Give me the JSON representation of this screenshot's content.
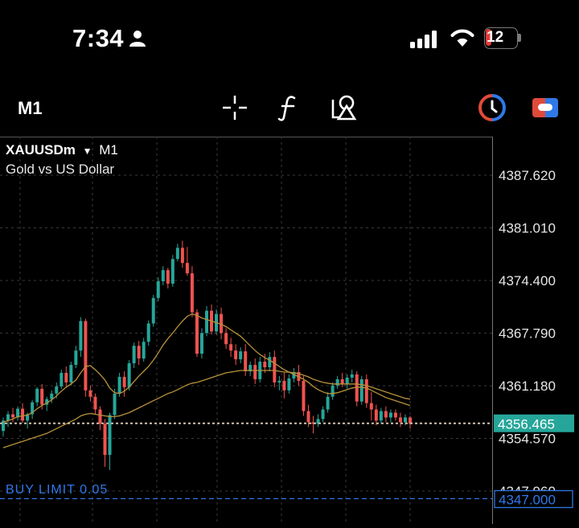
{
  "status": {
    "time": "7:34",
    "battery": "12",
    "battery_level": 0.12
  },
  "toolbar": {
    "timeframe": "M1",
    "icons": [
      "crosshair-icon",
      "function-icon",
      "objects-icon",
      "one-click-trading-icon",
      "trade-toggle-icon"
    ]
  },
  "chart": {
    "symbol": "XAUUSDm",
    "timeframe": "M1",
    "description": "Gold vs US Dollar",
    "current_price": "4356.465",
    "order_label": "BUY LIMIT 0.05",
    "order_price": "4347.000",
    "price_labels": [
      "4387.620",
      "4381.010",
      "4374.400",
      "4367.790",
      "4361.180",
      "4354.570",
      "4347.960"
    ],
    "colors": {
      "bull": "#26a69a",
      "bear": "#ef5350",
      "ma": "#b8923a",
      "current": "#26a69a",
      "order": "#2f78e8",
      "grid": "#3a3a3a"
    }
  },
  "chart_data": {
    "type": "candlestick",
    "ylim": [
      4344,
      4392
    ],
    "ticks": [
      4387.62,
      4381.01,
      4374.4,
      4367.79,
      4361.18,
      4354.57,
      4347.96
    ],
    "current_price": 4356.465,
    "order_price": 4347.0,
    "candles": [
      [
        4355.5,
        4357.2,
        4354.8,
        4356.8
      ],
      [
        4356.8,
        4358.0,
        4356.0,
        4357.6
      ],
      [
        4357.6,
        4358.4,
        4356.6,
        4357.2
      ],
      [
        4357.2,
        4358.6,
        4356.8,
        4358.3
      ],
      [
        4358.3,
        4359.0,
        4356.5,
        4356.8
      ],
      [
        4356.8,
        4357.8,
        4355.8,
        4357.6
      ],
      [
        4357.6,
        4359.4,
        4357.0,
        4359.1
      ],
      [
        4359.1,
        4361.0,
        4358.6,
        4360.8
      ],
      [
        4360.8,
        4361.4,
        4358.2,
        4358.8
      ],
      [
        4358.8,
        4359.8,
        4358.0,
        4359.5
      ],
      [
        4359.5,
        4360.6,
        4359.0,
        4360.2
      ],
      [
        4360.2,
        4361.6,
        4359.6,
        4361.1
      ],
      [
        4361.1,
        4363.2,
        4360.8,
        4362.8
      ],
      [
        4362.8,
        4363.6,
        4361.0,
        4361.6
      ],
      [
        4361.6,
        4364.2,
        4361.2,
        4363.8
      ],
      [
        4363.8,
        4366.2,
        4363.4,
        4365.6
      ],
      [
        4365.6,
        4369.8,
        4364.8,
        4369.3
      ],
      [
        4369.3,
        4369.6,
        4359.8,
        4360.6
      ],
      [
        4360.6,
        4361.2,
        4359.2,
        4359.8
      ],
      [
        4359.8,
        4360.2,
        4357.6,
        4358.2
      ],
      [
        4358.2,
        4358.6,
        4355.6,
        4356.4
      ],
      [
        4356.4,
        4357.0,
        4351.0,
        4352.5
      ],
      [
        4352.5,
        4357.8,
        4350.6,
        4357.5
      ],
      [
        4357.5,
        4360.8,
        4357.0,
        4360.2
      ],
      [
        4360.2,
        4362.8,
        4359.8,
        4362.3
      ],
      [
        4362.3,
        4363.0,
        4359.8,
        4361.0
      ],
      [
        4361.0,
        4364.4,
        4360.6,
        4364.0
      ],
      [
        4364.0,
        4366.6,
        4363.4,
        4366.2
      ],
      [
        4366.2,
        4366.8,
        4363.8,
        4364.6
      ],
      [
        4364.6,
        4367.2,
        4364.2,
        4366.7
      ],
      [
        4366.7,
        4369.4,
        4366.2,
        4369.0
      ],
      [
        4369.0,
        4372.6,
        4368.6,
        4372.2
      ],
      [
        4372.2,
        4374.8,
        4371.8,
        4374.3
      ],
      [
        4374.3,
        4376.2,
        4373.8,
        4375.7
      ],
      [
        4375.7,
        4376.0,
        4373.4,
        4374.0
      ],
      [
        4374.0,
        4377.6,
        4373.6,
        4377.1
      ],
      [
        4377.1,
        4379.0,
        4376.8,
        4378.5
      ],
      [
        4378.5,
        4379.4,
        4376.0,
        4376.6
      ],
      [
        4376.6,
        4378.6,
        4375.0,
        4375.3
      ],
      [
        4375.3,
        4376.2,
        4369.8,
        4370.4
      ],
      [
        4370.4,
        4370.8,
        4364.8,
        4365.2
      ],
      [
        4365.2,
        4368.4,
        4364.6,
        4367.8
      ],
      [
        4367.8,
        4371.2,
        4367.4,
        4370.6
      ],
      [
        4370.6,
        4371.4,
        4367.6,
        4368.0
      ],
      [
        4368.0,
        4370.8,
        4367.6,
        4370.2
      ],
      [
        4370.2,
        4371.0,
        4367.0,
        4367.8
      ],
      [
        4367.8,
        4368.4,
        4365.8,
        4366.4
      ],
      [
        4366.4,
        4367.2,
        4364.8,
        4365.6
      ],
      [
        4365.6,
        4366.4,
        4363.8,
        4364.5
      ],
      [
        4364.5,
        4366.0,
        4364.0,
        4365.5
      ],
      [
        4365.5,
        4366.4,
        4362.4,
        4363.0
      ],
      [
        4363.0,
        4364.2,
        4362.4,
        4363.8
      ],
      [
        4363.8,
        4364.6,
        4361.4,
        4362.0
      ],
      [
        4362.0,
        4364.8,
        4361.6,
        4364.2
      ],
      [
        4364.2,
        4365.2,
        4362.8,
        4363.5
      ],
      [
        4363.5,
        4365.4,
        4363.0,
        4364.8
      ],
      [
        4364.8,
        4365.6,
        4361.0,
        4361.6
      ],
      [
        4361.6,
        4362.4,
        4360.6,
        4361.8
      ],
      [
        4361.8,
        4362.8,
        4359.6,
        4360.6
      ],
      [
        4360.6,
        4362.6,
        4360.2,
        4362.1
      ],
      [
        4362.1,
        4363.4,
        4361.6,
        4362.9
      ],
      [
        4362.9,
        4363.8,
        4361.2,
        4361.8
      ],
      [
        4361.8,
        4362.4,
        4357.4,
        4358.0
      ],
      [
        4358.0,
        4358.8,
        4356.0,
        4356.6
      ],
      [
        4356.6,
        4357.4,
        4355.2,
        4356.4
      ],
      [
        4356.4,
        4357.6,
        4356.0,
        4357.0
      ],
      [
        4357.0,
        4358.6,
        4356.6,
        4358.2
      ],
      [
        4358.2,
        4360.4,
        4357.8,
        4359.8
      ],
      [
        4359.8,
        4361.6,
        4359.4,
        4361.2
      ],
      [
        4361.2,
        4362.4,
        4360.8,
        4362.0
      ],
      [
        4362.0,
        4362.8,
        4361.0,
        4361.4
      ],
      [
        4361.4,
        4362.6,
        4360.8,
        4362.2
      ],
      [
        4362.2,
        4363.2,
        4361.6,
        4362.6
      ],
      [
        4362.6,
        4363.0,
        4358.6,
        4359.2
      ],
      [
        4359.2,
        4362.4,
        4358.8,
        4362.0
      ],
      [
        4362.0,
        4362.6,
        4358.4,
        4359.0
      ],
      [
        4359.0,
        4360.4,
        4356.8,
        4358.2
      ],
      [
        4358.2,
        4358.8,
        4356.2,
        4356.8
      ],
      [
        4356.8,
        4358.4,
        4356.4,
        4358.0
      ],
      [
        4358.0,
        4358.6,
        4356.6,
        4357.2
      ],
      [
        4357.2,
        4358.2,
        4356.6,
        4357.8
      ],
      [
        4357.8,
        4358.2,
        4356.8,
        4357.2
      ],
      [
        4357.2,
        4357.8,
        4356.0,
        4356.6
      ],
      [
        4356.6,
        4357.6,
        4356.2,
        4357.2
      ],
      [
        4357.2,
        4357.4,
        4355.8,
        4356.4
      ]
    ],
    "ma_fast": [
      4356.6,
      4356.8,
      4357.0,
      4357.3,
      4357.4,
      4357.5,
      4357.8,
      4358.3,
      4358.7,
      4359.0,
      4359.4,
      4359.9,
      4360.5,
      4361.0,
      4361.4,
      4361.9,
      4362.8,
      4363.6,
      4363.7,
      4363.2,
      4362.6,
      4361.9,
      4360.9,
      4360.3,
      4360.2,
      4360.5,
      4361.0,
      4361.7,
      4362.4,
      4363.0,
      4363.6,
      4364.4,
      4365.3,
      4366.3,
      4367.1,
      4367.8,
      4368.6,
      4369.3,
      4369.9,
      4370.2,
      4370.0,
      4369.7,
      4369.5,
      4369.3,
      4369.1,
      4368.9,
      4368.6,
      4368.2,
      4367.8,
      4367.4,
      4366.8,
      4366.2,
      4365.6,
      4365.1,
      4364.7,
      4364.4,
      4364.0,
      4363.6,
      4363.2,
      4362.9,
      4362.6,
      4362.3,
      4362.0,
      4361.6,
      4361.1,
      4360.7,
      4360.4,
      4360.2,
      4360.2,
      4360.3,
      4360.5,
      4360.7,
      4360.9,
      4361.0,
      4361.0,
      4360.9,
      4360.6,
      4360.3,
      4360.0,
      4359.7,
      4359.5,
      4359.3,
      4359.1,
      4358.9,
      4358.7
    ],
    "ma_slow": [
      4353.4,
      4353.6,
      4353.8,
      4354.0,
      4354.2,
      4354.4,
      4354.6,
      4354.8,
      4355.0,
      4355.2,
      4355.5,
      4355.8,
      4356.1,
      4356.4,
      4356.7,
      4357.0,
      4357.4,
      4357.6,
      4357.7,
      4357.6,
      4357.5,
      4357.4,
      4357.3,
      4357.3,
      4357.4,
      4357.6,
      4357.8,
      4358.1,
      4358.4,
      4358.7,
      4359.0,
      4359.3,
      4359.6,
      4359.9,
      4360.2,
      4360.4,
      4360.7,
      4361.0,
      4361.3,
      4361.5,
      4361.6,
      4361.8,
      4362.0,
      4362.2,
      4362.4,
      4362.6,
      4362.8,
      4362.9,
      4363.0,
      4363.1,
      4363.1,
      4363.1,
      4363.1,
      4363.1,
      4363.1,
      4363.1,
      4363.1,
      4363.0,
      4362.9,
      4362.9,
      4362.8,
      4362.7,
      4362.5,
      4362.3,
      4362.0,
      4361.8,
      4361.6,
      4361.5,
      4361.4,
      4361.4,
      4361.4,
      4361.4,
      4361.4,
      4361.4,
      4361.3,
      4361.2,
      4361.0,
      4360.8,
      4360.6,
      4360.4,
      4360.2,
      4360.0,
      4359.8,
      4359.6,
      4359.5
    ]
  }
}
